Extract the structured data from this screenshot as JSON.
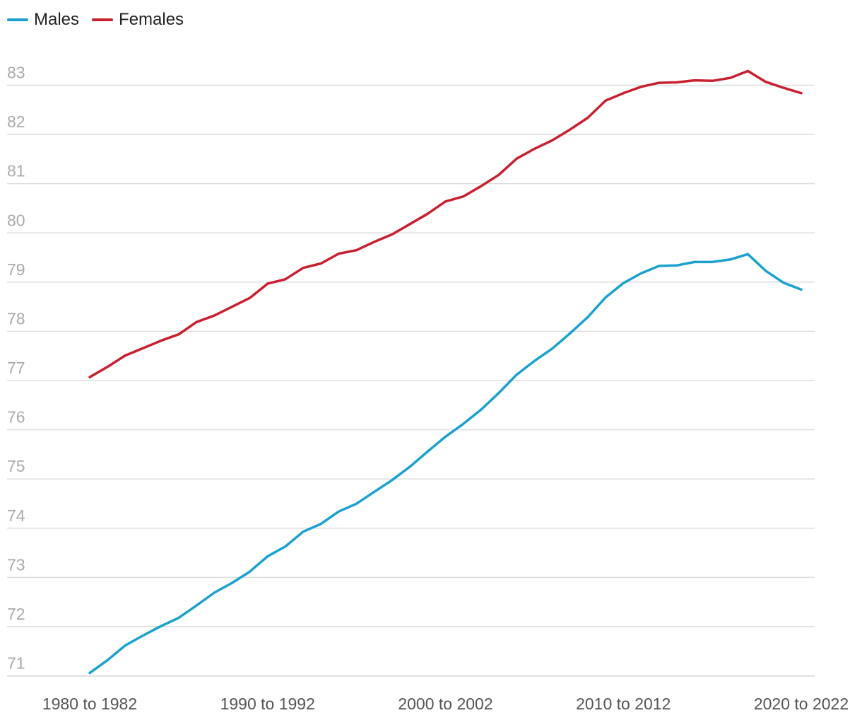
{
  "chart_data": {
    "type": "line",
    "title": "",
    "xlabel": "",
    "ylabel": "",
    "legend_position": "top-left",
    "grid": true,
    "ylim": [
      70.8,
      83.2
    ],
    "yticks": [
      71,
      72,
      73,
      74,
      75,
      76,
      77,
      78,
      79,
      80,
      81,
      82,
      83
    ],
    "x": [
      "1980 to 1982",
      "1981 to 1983",
      "1982 to 1984",
      "1983 to 1985",
      "1984 to 1986",
      "1985 to 1987",
      "1986 to 1988",
      "1987 to 1989",
      "1988 to 1990",
      "1989 to 1991",
      "1990 to 1992",
      "1991 to 1993",
      "1992 to 1994",
      "1993 to 1995",
      "1994 to 1996",
      "1995 to 1997",
      "1996 to 1998",
      "1997 to 1999",
      "1998 to 2000",
      "1999 to 2001",
      "2000 to 2002",
      "2001 to 2003",
      "2002 to 2004",
      "2003 to 2005",
      "2004 to 2006",
      "2005 to 2007",
      "2006 to 2008",
      "2007 to 2009",
      "2008 to 2010",
      "2009 to 2011",
      "2010 to 2012",
      "2011 to 2013",
      "2012 to 2014",
      "2013 to 2015",
      "2014 to 2016",
      "2015 to 2017",
      "2016 to 2018",
      "2017 to 2019",
      "2018 to 2020",
      "2019 to 2021",
      "2020 to 2022"
    ],
    "xtick_labels": [
      "1980 to 1982",
      "1990 to 1992",
      "2000 to 2002",
      "2010 to 2012",
      "2020 to 2022"
    ],
    "series": [
      {
        "name": "Males",
        "color": "#1ba1cf",
        "values": [
          70.8,
          71.06,
          71.36,
          71.56,
          71.75,
          71.92,
          72.17,
          72.43,
          72.63,
          72.86,
          73.17,
          73.37,
          73.67,
          73.83,
          74.08,
          74.24,
          74.48,
          74.72,
          74.99,
          75.3,
          75.6,
          75.86,
          76.15,
          76.49,
          76.86,
          77.14,
          77.39,
          77.7,
          78.03,
          78.43,
          78.72,
          78.92,
          79.07,
          79.08,
          79.15,
          79.15,
          79.2,
          79.31,
          78.97,
          78.73,
          78.59
        ]
      },
      {
        "name": "Females",
        "color": "#c8202f",
        "values": [
          76.81,
          77.02,
          77.25,
          77.4,
          77.55,
          77.68,
          77.93,
          78.06,
          78.24,
          78.42,
          78.71,
          78.8,
          79.03,
          79.12,
          79.32,
          79.39,
          79.56,
          79.71,
          79.92,
          80.13,
          80.38,
          80.48,
          80.69,
          80.92,
          81.25,
          81.45,
          81.62,
          81.84,
          82.08,
          82.43,
          82.58,
          82.71,
          82.79,
          82.8,
          82.84,
          82.83,
          82.89,
          83.03,
          82.81,
          82.69,
          82.58
        ]
      }
    ]
  }
}
